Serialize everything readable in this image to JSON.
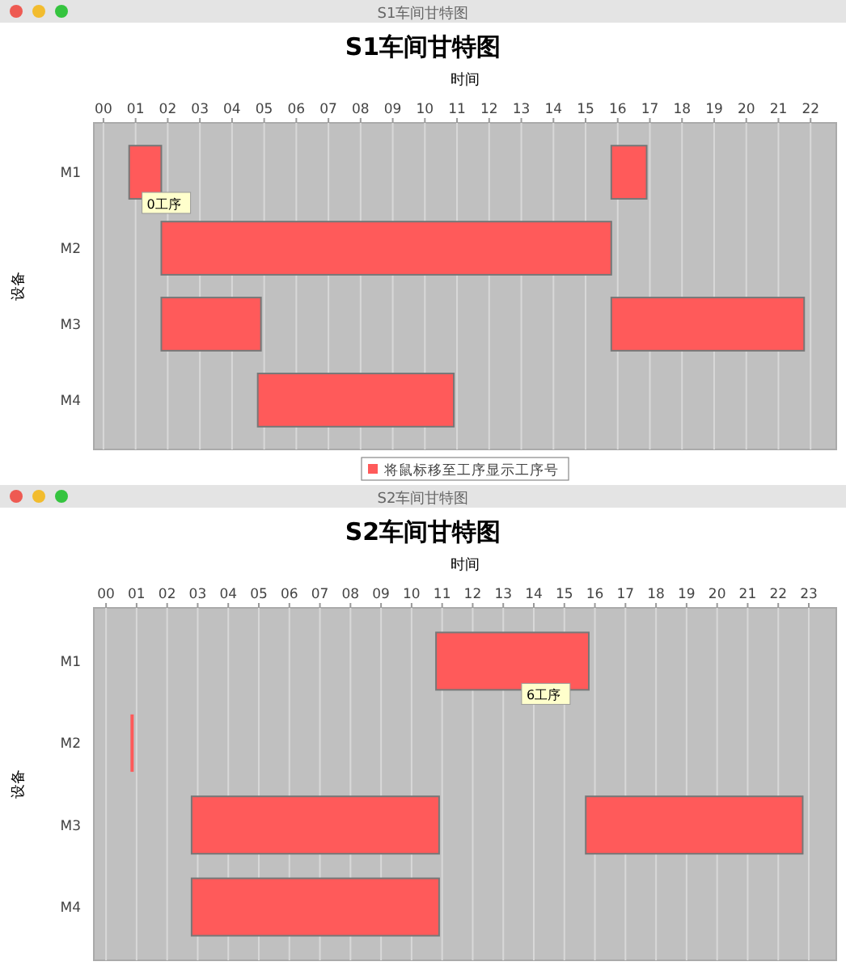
{
  "chart_data": [
    {
      "type": "bar",
      "orientation": "horizontal",
      "title": "S1车间甘特图",
      "xlabel": "时间",
      "ylabel": "设备",
      "categories": [
        "M1",
        "M2",
        "M3",
        "M4"
      ],
      "xlim": [
        -0.3,
        22.8
      ],
      "xticks": [
        {
          "value": 0,
          "label": "00"
        },
        {
          "value": 1,
          "label": "01"
        },
        {
          "value": 2,
          "label": "02"
        },
        {
          "value": 3,
          "label": "03"
        },
        {
          "value": 4,
          "label": "04"
        },
        {
          "value": 5,
          "label": "05"
        },
        {
          "value": 6,
          "label": "06"
        },
        {
          "value": 7,
          "label": "07"
        },
        {
          "value": 8,
          "label": "08"
        },
        {
          "value": 9,
          "label": "09"
        },
        {
          "value": 10,
          "label": "10"
        },
        {
          "value": 11,
          "label": "11"
        },
        {
          "value": 12,
          "label": "12"
        },
        {
          "value": 13,
          "label": "13"
        },
        {
          "value": 14,
          "label": "14"
        },
        {
          "value": 15,
          "label": "15"
        },
        {
          "value": 16,
          "label": "16"
        },
        {
          "value": 17,
          "label": "17"
        },
        {
          "value": 18,
          "label": "18"
        },
        {
          "value": 19,
          "label": "19"
        },
        {
          "value": 20,
          "label": "20"
        },
        {
          "value": 21,
          "label": "21"
        },
        {
          "value": 22,
          "label": "22"
        }
      ],
      "grid": "x",
      "legend": "bottom",
      "series": [
        {
          "name": "将鼠标移至工序显示工序号",
          "color": "#ff5a5a",
          "base": [
            0.8,
            1.8,
            1.8,
            4.8
          ],
          "values": [
            1.0,
            14.0,
            3.1,
            6.1
          ]
        },
        {
          "color": "#ff5a5a",
          "base": [
            15.8,
            null,
            15.8,
            null
          ],
          "values": [
            1.1,
            null,
            6.0,
            null
          ]
        }
      ],
      "annotations": [
        "S1车间甘特图",
        {
          "text": "0工序",
          "x": 1.2,
          "y": "M1"
        }
      ]
    },
    {
      "type": "bar",
      "orientation": "horizontal",
      "title": "S2车间甘特图",
      "xlabel": "时间",
      "ylabel": "设备",
      "categories": [
        "M1",
        "M2",
        "M3",
        "M4"
      ],
      "xlim": [
        -0.4,
        23.9
      ],
      "xticks": [
        {
          "value": 0,
          "label": "00"
        },
        {
          "value": 1,
          "label": "01"
        },
        {
          "value": 2,
          "label": "02"
        },
        {
          "value": 3,
          "label": "03"
        },
        {
          "value": 4,
          "label": "04"
        },
        {
          "value": 5,
          "label": "05"
        },
        {
          "value": 6,
          "label": "06"
        },
        {
          "value": 7,
          "label": "07"
        },
        {
          "value": 8,
          "label": "08"
        },
        {
          "value": 9,
          "label": "09"
        },
        {
          "value": 10,
          "label": "10"
        },
        {
          "value": 11,
          "label": "11"
        },
        {
          "value": 12,
          "label": "12"
        },
        {
          "value": 13,
          "label": "13"
        },
        {
          "value": 14,
          "label": "14"
        },
        {
          "value": 15,
          "label": "15"
        },
        {
          "value": 16,
          "label": "16"
        },
        {
          "value": 17,
          "label": "17"
        },
        {
          "value": 18,
          "label": "18"
        },
        {
          "value": 19,
          "label": "19"
        },
        {
          "value": 20,
          "label": "20"
        },
        {
          "value": 21,
          "label": "21"
        },
        {
          "value": 22,
          "label": "22"
        },
        {
          "value": 23,
          "label": "23"
        }
      ],
      "grid": "x",
      "series": [
        {
          "color": "#ff5a5a",
          "base": [
            10.8,
            0.8,
            2.8,
            2.8
          ],
          "values": [
            5.0,
            0.1,
            8.1,
            8.1
          ]
        },
        {
          "color": "#ff5a5a",
          "base": [
            null,
            null,
            15.7,
            null
          ],
          "values": [
            null,
            null,
            7.1,
            null
          ]
        }
      ],
      "annotations": [
        "S2车间甘特图",
        {
          "text": "6工序",
          "x": 13.6,
          "y": "M1"
        }
      ]
    }
  ]
}
